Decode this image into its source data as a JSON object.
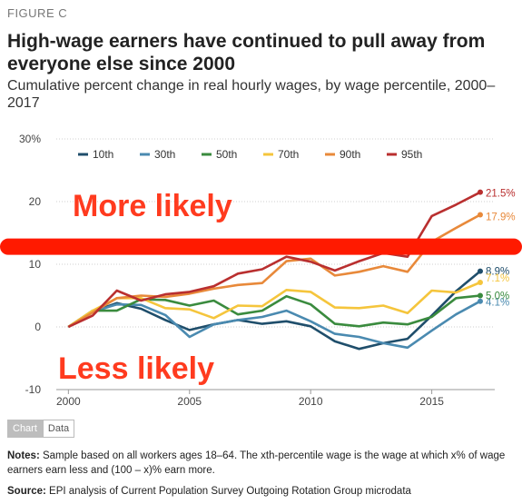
{
  "figure_label": "FIGURE C",
  "title": "High-wage earners have continued to pull away from everyone else since 2000",
  "subtitle": "Cumulative percent change in real hourly wages, by wage percentile, 2000–2017",
  "tabs": [
    {
      "label": "Chart",
      "active": true
    },
    {
      "label": "Data",
      "active": false
    }
  ],
  "notes": {
    "label": "Notes:",
    "text": "Sample based on all workers ages 18–64. The xth-percentile wage is the wage at which x% of wage earners earn less and (100 – x)% earn more."
  },
  "source": {
    "label": "Source:",
    "text": "EPI analysis of Current Population Survey Outgoing Rotation Group microdata"
  },
  "annotations": {
    "upper": {
      "text": "More likely",
      "color": "#ff3b1f"
    },
    "lower": {
      "text": "Less likely",
      "color": "#ff3b1f"
    },
    "divider_y": 12.8,
    "divider_color": "#ff1a00"
  },
  "chart_data": {
    "type": "line",
    "x": [
      2000,
      2001,
      2002,
      2003,
      2004,
      2005,
      2006,
      2007,
      2008,
      2009,
      2010,
      2011,
      2012,
      2013,
      2014,
      2015,
      2016,
      2017
    ],
    "xticks": [
      2000,
      2005,
      2010,
      2015
    ],
    "yticks": [
      -10,
      0,
      10,
      20,
      30
    ],
    "ytick_labels": [
      "-10",
      "0",
      "10",
      "20",
      "30%"
    ],
    "xlim": [
      1999.5,
      2017.6
    ],
    "ylim": [
      -10,
      30
    ],
    "legend_position": "top",
    "series": [
      {
        "name": "10th",
        "color": "#1f4e6b",
        "end_label": "8.9%",
        "values": [
          0,
          2.4,
          3.8,
          2.9,
          1.1,
          -0.5,
          0.4,
          1.1,
          0.5,
          0.9,
          0.1,
          -2.3,
          -3.5,
          -2.6,
          -1.9,
          1.8,
          5.7,
          8.9
        ]
      },
      {
        "name": "30th",
        "color": "#4a8ab0",
        "end_label": "4.1%",
        "values": [
          0,
          2.4,
          3.6,
          3.5,
          1.9,
          -1.6,
          0.4,
          1.1,
          1.6,
          2.6,
          0.9,
          -1.1,
          -1.6,
          -2.6,
          -3.3,
          -0.6,
          2.0,
          4.1
        ]
      },
      {
        "name": "50th",
        "color": "#3a8b3e",
        "end_label": "5.0%",
        "values": [
          0,
          2.6,
          2.6,
          4.4,
          4.3,
          3.4,
          4.2,
          2.0,
          2.6,
          4.9,
          3.6,
          0.5,
          0.1,
          0.7,
          0.4,
          1.6,
          4.6,
          5.0
        ]
      },
      {
        "name": "70th",
        "color": "#f5c53c",
        "end_label": "7.1%",
        "values": [
          0,
          2.6,
          4.6,
          4.6,
          3.0,
          2.8,
          1.4,
          3.4,
          3.3,
          5.9,
          5.6,
          3.1,
          3.0,
          3.4,
          2.2,
          5.8,
          5.5,
          7.1
        ]
      },
      {
        "name": "90th",
        "color": "#e8893a",
        "end_label": "17.9%",
        "values": [
          0,
          2.3,
          4.6,
          5.0,
          4.8,
          5.3,
          6.1,
          6.7,
          7.0,
          10.5,
          10.9,
          8.2,
          8.8,
          9.7,
          8.8,
          13.6,
          15.8,
          17.9
        ]
      },
      {
        "name": "95th",
        "color": "#b92f2f",
        "end_label": "21.5%",
        "values": [
          0,
          1.8,
          5.8,
          4.2,
          5.2,
          5.6,
          6.5,
          8.5,
          9.2,
          11.2,
          10.4,
          9.0,
          10.5,
          11.8,
          11.2,
          17.7,
          19.5,
          21.5
        ]
      }
    ]
  }
}
